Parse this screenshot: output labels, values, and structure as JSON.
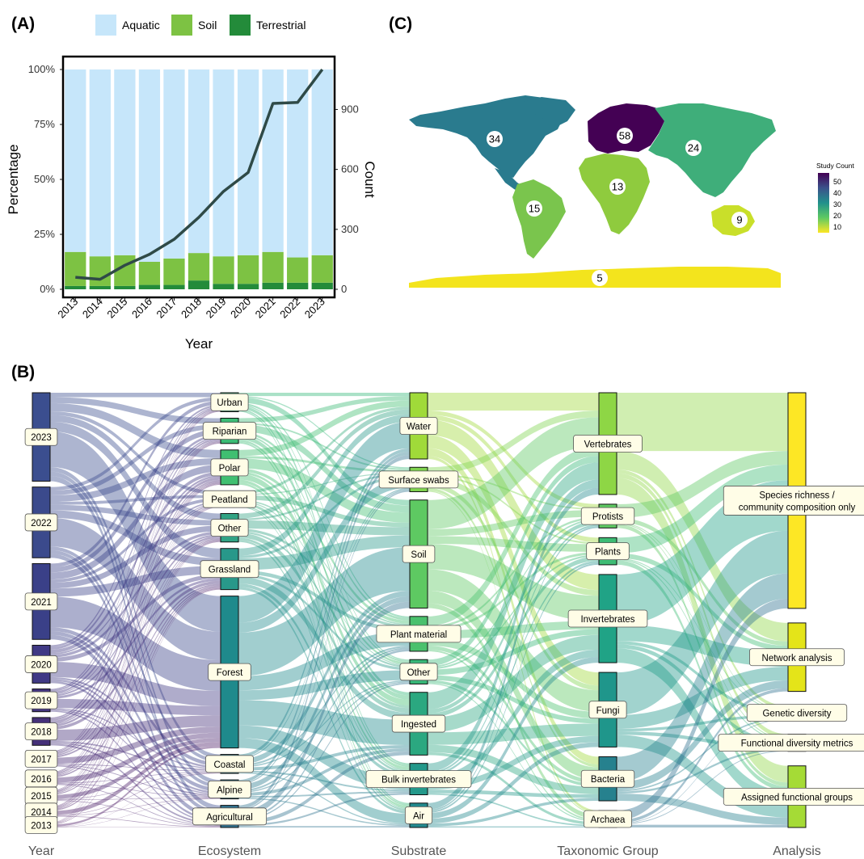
{
  "panels": {
    "a": "(A)",
    "b": "(B)",
    "c": "(C)"
  },
  "chart_data": [
    {
      "type": "bar",
      "stacked": true,
      "categories": [
        "2013",
        "2014",
        "2015",
        "2016",
        "2017",
        "2018",
        "2019",
        "2020",
        "2021",
        "2022",
        "2023"
      ],
      "series": [
        {
          "name": "Terrestrial",
          "color": "#238B3A",
          "values": [
            1.5,
            1.5,
            1.5,
            2,
            2,
            4,
            2.5,
            2.5,
            3,
            3,
            3
          ]
        },
        {
          "name": "Soil",
          "color": "#7DC243",
          "values": [
            15.5,
            13.5,
            14,
            10.5,
            12,
            12.5,
            12.5,
            13,
            14,
            11.5,
            12.5
          ]
        },
        {
          "name": "Aquatic",
          "color": "#C6E6FA",
          "values": [
            83,
            85,
            84.5,
            87.5,
            86,
            83.5,
            85,
            84.5,
            83,
            85.5,
            84.5
          ]
        }
      ],
      "line_series": {
        "name": "Count",
        "color": "#2F4A47",
        "values": [
          60,
          50,
          120,
          175,
          250,
          360,
          490,
          585,
          930,
          935,
          1100
        ]
      },
      "xlabel": "Year",
      "ylabel": "Percentage",
      "y2label": "Count",
      "y_ticks": [
        "0%",
        "25%",
        "50%",
        "75%",
        "100%"
      ],
      "y2_ticks": [
        "0",
        "300",
        "600",
        "900"
      ],
      "ylim": [
        0,
        100
      ],
      "y2lim": [
        0,
        1100
      ],
      "legend_position": "top"
    },
    {
      "type": "map",
      "legend_title": "Study Count",
      "legend_ticks": [
        "50",
        "40",
        "30",
        "20",
        "10"
      ],
      "colorscale": [
        "#440154",
        "#3B528B",
        "#21918C",
        "#5EC962",
        "#FDE725"
      ],
      "range": [
        5,
        58
      ],
      "regions": [
        {
          "label": "34",
          "color": "#2A7B8E"
        },
        {
          "label": "58",
          "color": "#440154"
        },
        {
          "label": "24",
          "color": "#3FAE7A"
        },
        {
          "label": "13",
          "color": "#8FCB3E"
        },
        {
          "label": "15",
          "color": "#7AC54D"
        },
        {
          "label": "9",
          "color": "#C9DF2A"
        },
        {
          "label": "5",
          "color": "#F3E41D"
        }
      ]
    },
    {
      "type": "sankey",
      "stage_labels": [
        "Year",
        "Ecosystem",
        "Substrate",
        "Taxonomic Group",
        "Analysis"
      ],
      "stages": [
        {
          "nodes": [
            {
              "label": "2023",
              "value": 70,
              "color": "#3B4E8F"
            },
            {
              "label": "2022",
              "value": 56,
              "color": "#3B4A8C"
            },
            {
              "label": "2021",
              "value": 60,
              "color": "#3A4088"
            },
            {
              "label": "2020",
              "value": 30,
              "color": "#403984"
            },
            {
              "label": "2019",
              "value": 18,
              "color": "#433580"
            },
            {
              "label": "2018",
              "value": 22,
              "color": "#453079"
            },
            {
              "label": "2017",
              "value": 12,
              "color": "#482C75"
            },
            {
              "label": "2016",
              "value": 10,
              "color": "#4A2872"
            },
            {
              "label": "2015",
              "value": 8,
              "color": "#4B246E"
            },
            {
              "label": "2014",
              "value": 8,
              "color": "#4D206A"
            },
            {
              "label": "2013",
              "value": 4,
              "color": "#4E1C66"
            }
          ]
        },
        {
          "nodes": [
            {
              "label": "Urban",
              "value": 12,
              "color": "#35B779"
            },
            {
              "label": "Riparian",
              "value": 16,
              "color": "#3BBB75"
            },
            {
              "label": "Polar",
              "value": 22,
              "color": "#40BF71"
            },
            {
              "label": "Peatland",
              "value": 10,
              "color": "#3AAE7F"
            },
            {
              "label": "Other",
              "value": 18,
              "color": "#31A384"
            },
            {
              "label": "Grassland",
              "value": 26,
              "color": "#28988A"
            },
            {
              "label": "Forest",
              "value": 96,
              "color": "#1F8A8C"
            },
            {
              "label": "Coastal",
              "value": 12,
              "color": "#26828E"
            },
            {
              "label": "Alpine",
              "value": 12,
              "color": "#2B7B8E"
            },
            {
              "label": "Agricultural",
              "value": 14,
              "color": "#30728E"
            }
          ]
        },
        {
          "nodes": [
            {
              "label": "Water",
              "value": 38,
              "color": "#A0DA39"
            },
            {
              "label": "Surface swabs",
              "value": 14,
              "color": "#7FD34E"
            },
            {
              "label": "Soil",
              "value": 62,
              "color": "#5EC962"
            },
            {
              "label": "Plant material",
              "value": 20,
              "color": "#4AC16D"
            },
            {
              "label": "Other",
              "value": 14,
              "color": "#37B878"
            },
            {
              "label": "Ingested",
              "value": 36,
              "color": "#2BA880"
            },
            {
              "label": "Bulk invertebrates",
              "value": 18,
              "color": "#23988A"
            },
            {
              "label": "Air",
              "value": 14,
              "color": "#22898D"
            }
          ]
        },
        {
          "nodes": [
            {
              "label": "Vertebrates",
              "value": 60,
              "color": "#8ED645"
            },
            {
              "label": "Protists",
              "value": 14,
              "color": "#5EC962"
            },
            {
              "label": "Plants",
              "value": 16,
              "color": "#3DBC74"
            },
            {
              "label": "Invertebrates",
              "value": 52,
              "color": "#20A386"
            },
            {
              "label": "Fungi",
              "value": 44,
              "color": "#1F968B"
            },
            {
              "label": "Bacteria",
              "value": 26,
              "color": "#26818E"
            },
            {
              "label": "Archaea",
              "value": 10,
              "color": "#2D708E"
            }
          ]
        },
        {
          "nodes": [
            {
              "label": "Species richness / community composition only",
              "value": 126,
              "color": "#FDE725"
            },
            {
              "label": "Network analysis",
              "value": 40,
              "color": "#E4E419"
            },
            {
              "label": "Genetic diversity",
              "value": 8,
              "color": "#C2DF23"
            },
            {
              "label": "Functional diversity metrics",
              "value": 10,
              "color": "#B0DD2F"
            },
            {
              "label": "Assigned functional groups",
              "value": 36,
              "color": "#A5DB36"
            }
          ]
        }
      ]
    }
  ]
}
